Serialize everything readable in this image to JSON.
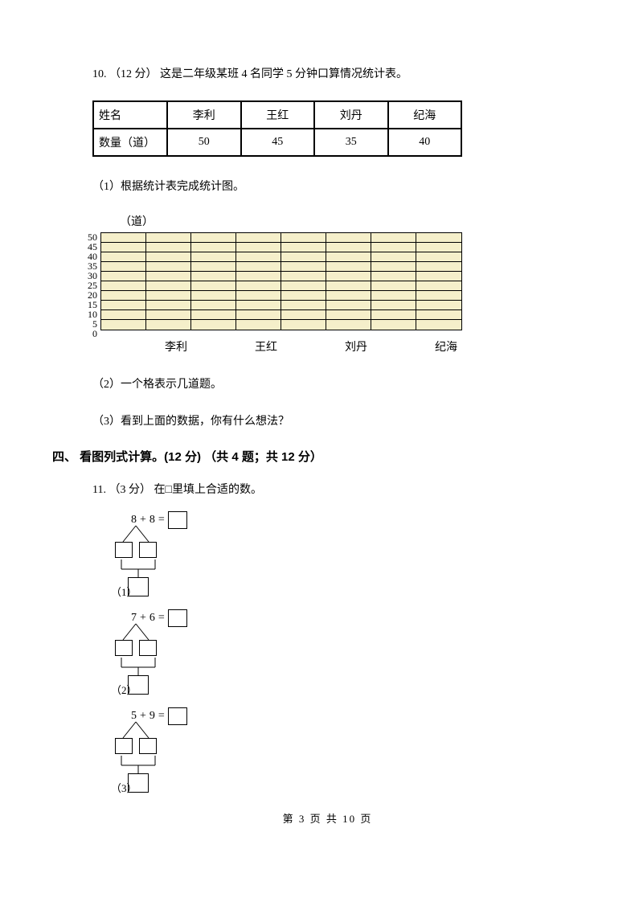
{
  "q10": {
    "number": "10.",
    "points": "（12 分）",
    "text": "这是二年级某班 4 名同学 5 分钟口算情况统计表。",
    "table": {
      "headers": [
        "姓名",
        "李利",
        "王红",
        "刘丹",
        "纪海"
      ],
      "row_label": "数量（道）",
      "values": [
        "50",
        "45",
        "35",
        "40"
      ]
    },
    "sub1": "（1）根据统计表完成统计图。",
    "chart": {
      "unit": "（道）",
      "y_ticks": [
        "50",
        "45",
        "40",
        "35",
        "30",
        "25",
        "20",
        "15",
        "10",
        "5",
        "0"
      ],
      "x_labels": [
        "李利",
        "王红",
        "刘丹",
        "纪海"
      ],
      "grid_bg": "#f5efca",
      "border": "#000000",
      "cols": 8,
      "rows": 10
    },
    "sub2": "（2）一个格表示几道题。",
    "sub3": "（3）看到上面的数据，你有什么想法？"
  },
  "section4": {
    "title": "四、 看图列式计算。(12 分) （共 4 题；共 12 分）"
  },
  "q11": {
    "number": "11.",
    "points": "（3 分）",
    "text": "在□里填上合适的数。",
    "items": [
      {
        "label": "（1）",
        "a": "8",
        "op": "+",
        "b": "8",
        "eq": "="
      },
      {
        "label": "（2）",
        "a": "7",
        "op": "+",
        "b": "6",
        "eq": "="
      },
      {
        "label": "（3）",
        "a": "5",
        "op": "+",
        "b": "9",
        "eq": "="
      }
    ]
  },
  "footer": "第 3 页 共 10 页"
}
